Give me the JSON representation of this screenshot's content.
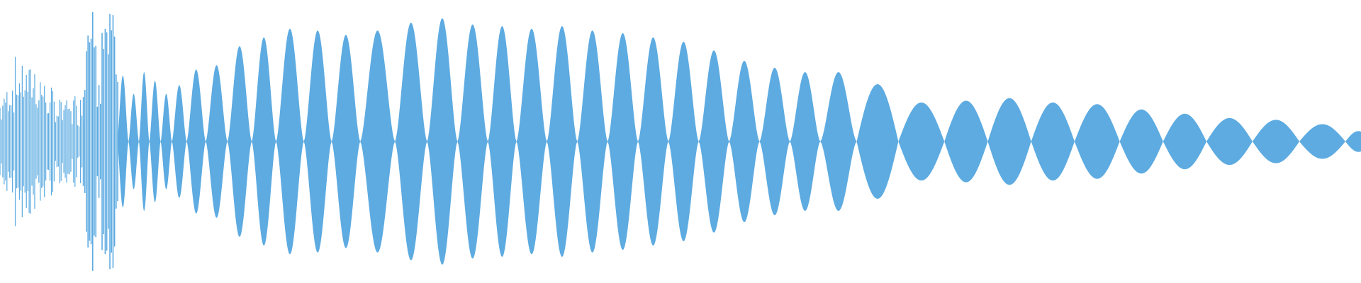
{
  "waveform": {
    "color": "#5dabe1"
  }
}
